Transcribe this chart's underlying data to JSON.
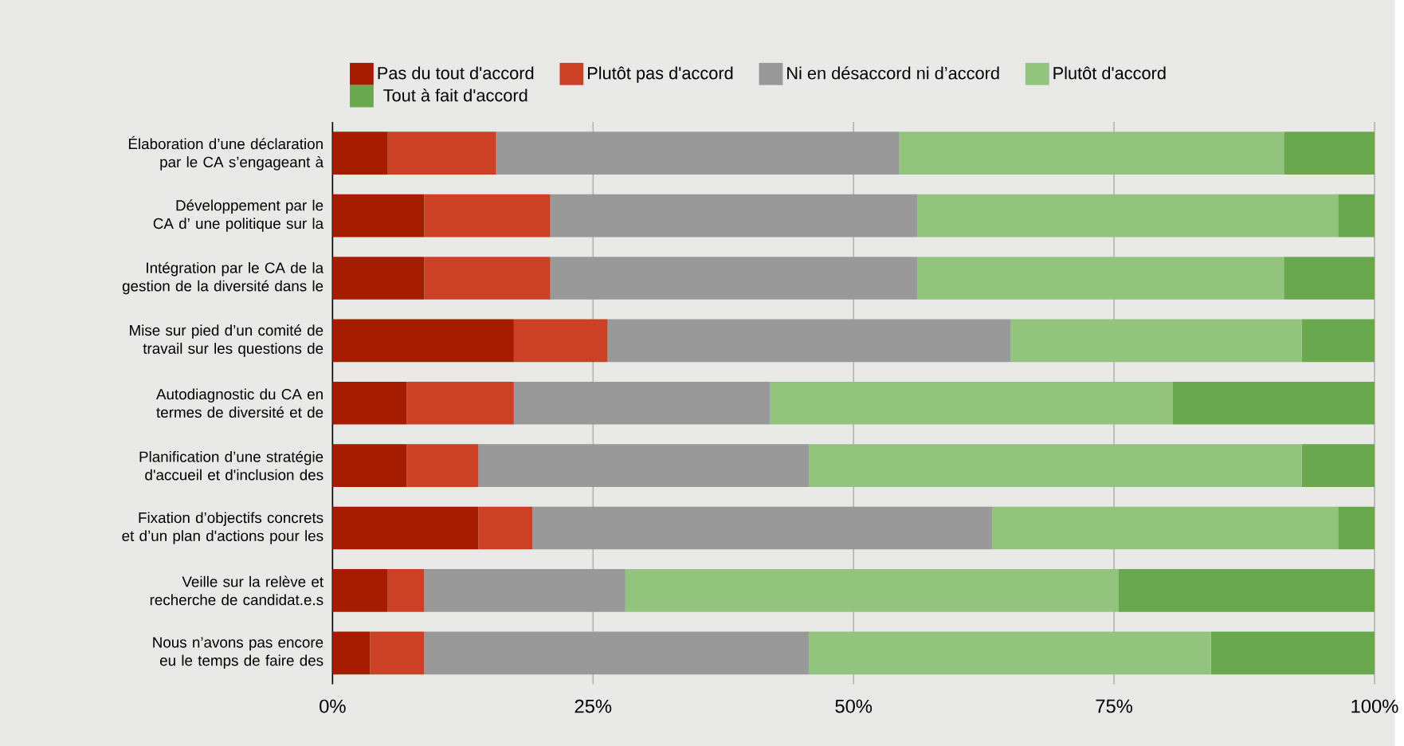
{
  "chart_data": {
    "type": "bar",
    "orientation": "horizontal",
    "stacked": true,
    "categories": [
      "Élaboration d’une déclaration par le CA s’engageant à",
      "Développement par le CA d’ une politique sur la",
      "Intégration par le CA de la gestion de la diversité dans le",
      "Mise sur pied d’un comité de travail sur les questions de",
      "Autodiagnostic du CA en termes de diversité et de",
      "Planification d’une stratégie d'accueil et d'inclusion des",
      "Fixation d’objectifs concrets et d’un plan d'actions pour les",
      "Veille sur la relève et recherche de candidat.e.s",
      "Nous n’avons pas encore eu le temps de faire des"
    ],
    "series": [
      {
        "name": "Pas du tout d'accord",
        "color": "#a61c00",
        "values": [
          5.3,
          8.8,
          8.8,
          17.4,
          7.1,
          7.1,
          14.0,
          5.3,
          3.6
        ]
      },
      {
        "name": "Plutôt pas d'accord",
        "color": "#cc4125",
        "values": [
          10.4,
          12.1,
          12.1,
          9.0,
          10.3,
          6.9,
          5.2,
          3.5,
          5.2
        ]
      },
      {
        "name": "Ni en désaccord ni d’accord",
        "color": "#999999",
        "values": [
          38.7,
          35.2,
          35.2,
          38.7,
          24.6,
          31.7,
          44.1,
          19.3,
          36.9
        ]
      },
      {
        "name": "Plutôt d'accord",
        "color": "#93c47d",
        "values": [
          36.9,
          40.4,
          35.2,
          27.9,
          38.6,
          47.3,
          33.2,
          47.3,
          38.6
        ]
      },
      {
        "name": "Tout à fait d'accord",
        "color": "#6aa84f",
        "values": [
          8.7,
          3.5,
          8.7,
          7.0,
          19.4,
          7.0,
          3.5,
          24.6,
          15.7
        ]
      }
    ],
    "xlim": [
      0,
      100
    ],
    "xticks": [
      {
        "value": 0,
        "label": "0%"
      },
      {
        "value": 25,
        "label": "25%"
      },
      {
        "value": 50,
        "label": "50%"
      },
      {
        "value": 75,
        "label": "75%"
      },
      {
        "value": 100,
        "label": "100%"
      }
    ],
    "grid": "x",
    "legend": "top"
  }
}
